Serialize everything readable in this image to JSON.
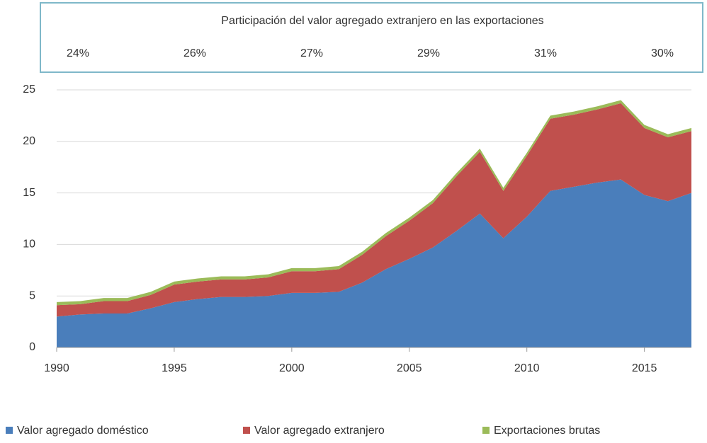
{
  "chart_data": {
    "type": "stacked_area",
    "title": "Participación del valor agregado extranjero en las exportaciones",
    "annotations": [
      "24%",
      "26%",
      "27%",
      "29%",
      "31%",
      "30%"
    ],
    "x": [
      1990,
      1991,
      1992,
      1993,
      1994,
      1995,
      1996,
      1997,
      1998,
      1999,
      2000,
      2001,
      2002,
      2003,
      2004,
      2005,
      2006,
      2007,
      2008,
      2009,
      2010,
      2011,
      2012,
      2013,
      2014,
      2015,
      2016,
      2017
    ],
    "series": [
      {
        "name": "Valor agregado doméstico",
        "color": "#4a7ebb",
        "values": [
          3.0,
          3.2,
          3.3,
          3.3,
          3.8,
          4.4,
          4.7,
          4.9,
          4.9,
          5.0,
          5.3,
          5.3,
          5.4,
          6.3,
          7.6,
          8.6,
          9.7,
          11.3,
          13.0,
          10.6,
          12.7,
          15.2,
          15.6,
          16.0,
          16.3,
          14.8,
          14.2,
          15.0
        ]
      },
      {
        "name": "Valor agregado extranjero",
        "color": "#c0504d",
        "values": [
          1.1,
          1.0,
          1.2,
          1.2,
          1.3,
          1.7,
          1.7,
          1.7,
          1.7,
          1.8,
          2.1,
          2.1,
          2.2,
          2.7,
          3.2,
          3.7,
          4.3,
          5.3,
          6.0,
          4.6,
          5.9,
          7.0,
          7.0,
          7.1,
          7.4,
          6.5,
          6.2,
          6.0
        ]
      },
      {
        "name": "Exportaciones brutas",
        "color": "#9bbb59",
        "values": [
          0.3,
          0.3,
          0.3,
          0.3,
          0.3,
          0.3,
          0.3,
          0.3,
          0.3,
          0.3,
          0.3,
          0.3,
          0.3,
          0.3,
          0.3,
          0.3,
          0.3,
          0.3,
          0.3,
          0.3,
          0.3,
          0.3,
          0.3,
          0.3,
          0.3,
          0.3,
          0.3,
          0.3
        ]
      }
    ],
    "xlim": [
      1990,
      2017
    ],
    "xticks": [
      1990,
      1995,
      2000,
      2005,
      2010,
      2015
    ],
    "ylim": [
      0,
      25
    ],
    "yticks": [
      0,
      5,
      10,
      15,
      20,
      25
    ],
    "grid": true,
    "legend": "bottom"
  }
}
